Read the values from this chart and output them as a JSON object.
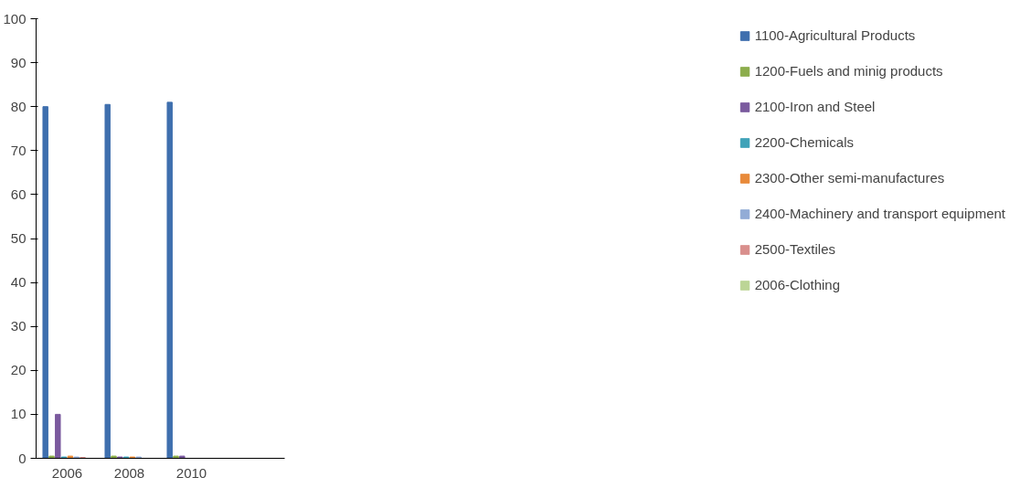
{
  "chart_data": {
    "type": "bar",
    "categories": [
      "2006",
      "2008",
      "2010",
      null
    ],
    "ylim": [
      0,
      100
    ],
    "yticks": [
      0,
      10,
      20,
      30,
      40,
      50,
      60,
      70,
      80,
      90,
      100
    ],
    "grid": false,
    "legend": "right",
    "series": [
      {
        "name": "1100-Agricultural Products",
        "color": "#3f6fae",
        "values": [
          80,
          80.5,
          81,
          null
        ]
      },
      {
        "name": "1200-Fuels and minig products",
        "color": "#8cad4c",
        "values": [
          0.5,
          0.5,
          0.5,
          null
        ]
      },
      {
        "name": "2100-Iron and Steel",
        "color": "#7a5a9e",
        "values": [
          10,
          0.3,
          0.5,
          null
        ]
      },
      {
        "name": "2200-Chemicals",
        "color": "#3fa2b8",
        "values": [
          0.3,
          0.3,
          null,
          null
        ]
      },
      {
        "name": "2300-Other semi-manufactures",
        "color": "#e88a3a",
        "values": [
          0.5,
          0.3,
          null,
          null
        ]
      },
      {
        "name": "2400-Machinery and transport equipment",
        "color": "#92acd6",
        "values": [
          0.3,
          0.3,
          null,
          null
        ]
      },
      {
        "name": "2500-Textiles",
        "color": "#d98f8d",
        "values": [
          0.2,
          null,
          null,
          null
        ]
      },
      {
        "name": "2006-Clothing",
        "color": "#bcd596",
        "values": [
          null,
          null,
          null,
          null
        ]
      }
    ]
  }
}
